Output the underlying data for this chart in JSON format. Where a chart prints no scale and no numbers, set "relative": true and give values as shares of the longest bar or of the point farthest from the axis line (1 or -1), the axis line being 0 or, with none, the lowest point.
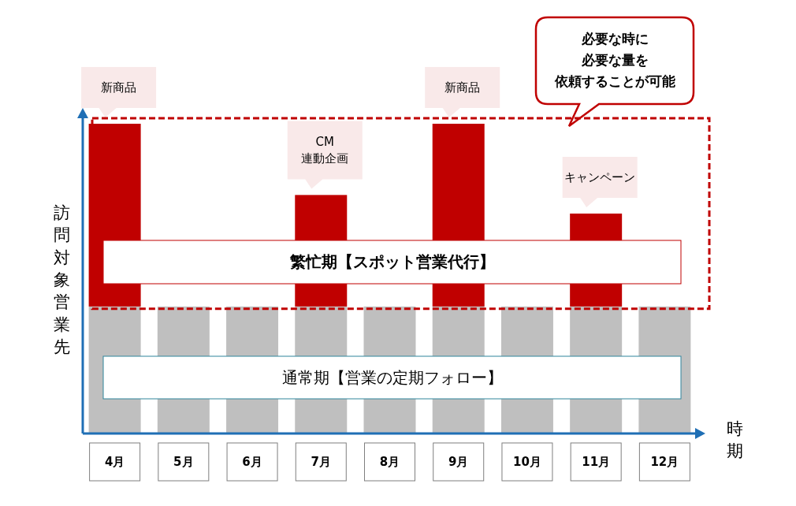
{
  "chart_data": {
    "type": "bar",
    "stacked": true,
    "relative": true,
    "ylabel": "訪問対象営業先",
    "xlabel": "時期",
    "categories": [
      "4月",
      "5月",
      "6月",
      "7月",
      "8月",
      "9月",
      "10月",
      "11月",
      "12月"
    ],
    "series": [
      {
        "color": "#bfbfbf",
        "values": [
          0.41,
          0.41,
          0.41,
          0.41,
          0.41,
          0.41,
          0.41,
          0.41,
          0.41
        ]
      },
      {
        "color": "#c00000",
        "values": [
          0.59,
          null,
          null,
          0.36,
          null,
          0.59,
          null,
          0.3,
          null
        ]
      }
    ],
    "annotations": [
      {
        "text": "新商品",
        "x": "4月",
        "y": 1
      },
      {
        "text": "CM\n連動企画",
        "x": "7月",
        "y": 0.77
      },
      {
        "text": "新商品",
        "x": "9月",
        "y": 1
      },
      {
        "text": "キャンペーン",
        "x": "11月",
        "y": 0.71
      },
      "必要な時に",
      "必要な量を",
      "依頼することが可能",
      "繁忙期【スポット営業代行】",
      "通常期【営業の定期フォロー】"
    ],
    "legend": false
  }
}
